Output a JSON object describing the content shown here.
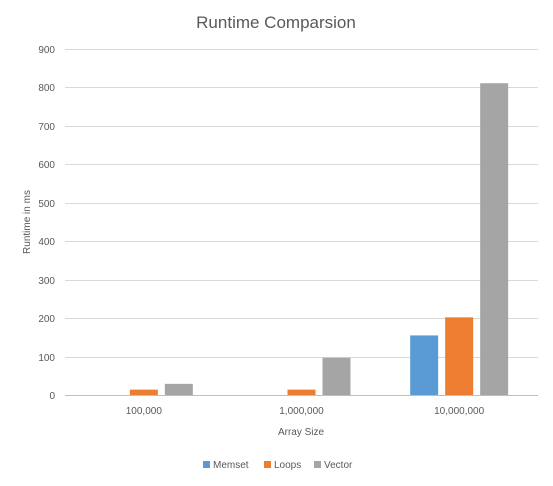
{
  "chart_data": {
    "type": "bar",
    "title": "Runtime Comparsion",
    "xlabel": "Array Size",
    "ylabel": "Runtime in ms",
    "categories": [
      "100,000",
      "1,000,000",
      "10,000,000"
    ],
    "ylim": [
      0,
      900
    ],
    "yticks": [
      0,
      100,
      200,
      300,
      400,
      500,
      600,
      700,
      800,
      900
    ],
    "grid": true,
    "legend_position": "bottom",
    "series": [
      {
        "name": "Memset",
        "color": "#5b9bd5",
        "values": [
          0,
          0,
          155
        ]
      },
      {
        "name": "Loops",
        "color": "#ed7d31",
        "values": [
          14,
          14,
          202
        ]
      },
      {
        "name": "Vector",
        "color": "#a5a5a5",
        "values": [
          29,
          97,
          811
        ]
      }
    ]
  }
}
